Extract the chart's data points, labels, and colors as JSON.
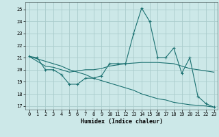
{
  "xlabel": "Humidex (Indice chaleur)",
  "bg_color": "#cce8e8",
  "grid_color": "#aacccc",
  "line_color": "#1a7070",
  "xlim": [
    -0.5,
    23.5
  ],
  "ylim": [
    16.7,
    25.6
  ],
  "yticks": [
    17,
    18,
    19,
    20,
    21,
    22,
    23,
    24,
    25
  ],
  "xticks": [
    0,
    1,
    2,
    3,
    4,
    5,
    6,
    7,
    8,
    9,
    10,
    11,
    12,
    13,
    14,
    15,
    16,
    17,
    18,
    19,
    20,
    21,
    22,
    23
  ],
  "series": [
    {
      "x": [
        0,
        1,
        2,
        3,
        4,
        5,
        6,
        7,
        8,
        9,
        10,
        11,
        12,
        13,
        14,
        15,
        16,
        17,
        18,
        19,
        20,
        21,
        22,
        23
      ],
      "y": [
        21.1,
        21.0,
        20.0,
        20.0,
        19.6,
        18.8,
        18.8,
        19.3,
        19.3,
        19.5,
        20.5,
        20.5,
        20.5,
        23.0,
        25.1,
        24.0,
        21.0,
        21.0,
        21.8,
        19.7,
        21.0,
        17.8,
        17.2,
        16.9
      ],
      "marker": true
    },
    {
      "x": [
        0,
        1,
        2,
        3,
        4,
        5,
        6,
        7,
        8,
        9,
        10,
        11,
        12,
        13,
        14,
        15,
        16,
        17,
        18,
        19,
        20,
        21,
        22,
        23
      ],
      "y": [
        21.1,
        20.7,
        20.3,
        20.2,
        20.0,
        19.8,
        19.9,
        20.0,
        20.0,
        20.1,
        20.3,
        20.4,
        20.5,
        20.55,
        20.6,
        20.6,
        20.6,
        20.55,
        20.5,
        20.3,
        20.1,
        20.0,
        19.9,
        19.8
      ],
      "marker": false
    },
    {
      "x": [
        0,
        1,
        2,
        3,
        4,
        5,
        6,
        7,
        8,
        9,
        10,
        11,
        12,
        13,
        14,
        15,
        16,
        17,
        18,
        19,
        20,
        21,
        22,
        23
      ],
      "y": [
        21.1,
        20.9,
        20.7,
        20.5,
        20.3,
        20.0,
        19.8,
        19.6,
        19.3,
        19.1,
        18.9,
        18.7,
        18.5,
        18.3,
        18.0,
        17.8,
        17.6,
        17.5,
        17.3,
        17.2,
        17.1,
        17.05,
        17.0,
        16.9
      ],
      "marker": false
    }
  ]
}
